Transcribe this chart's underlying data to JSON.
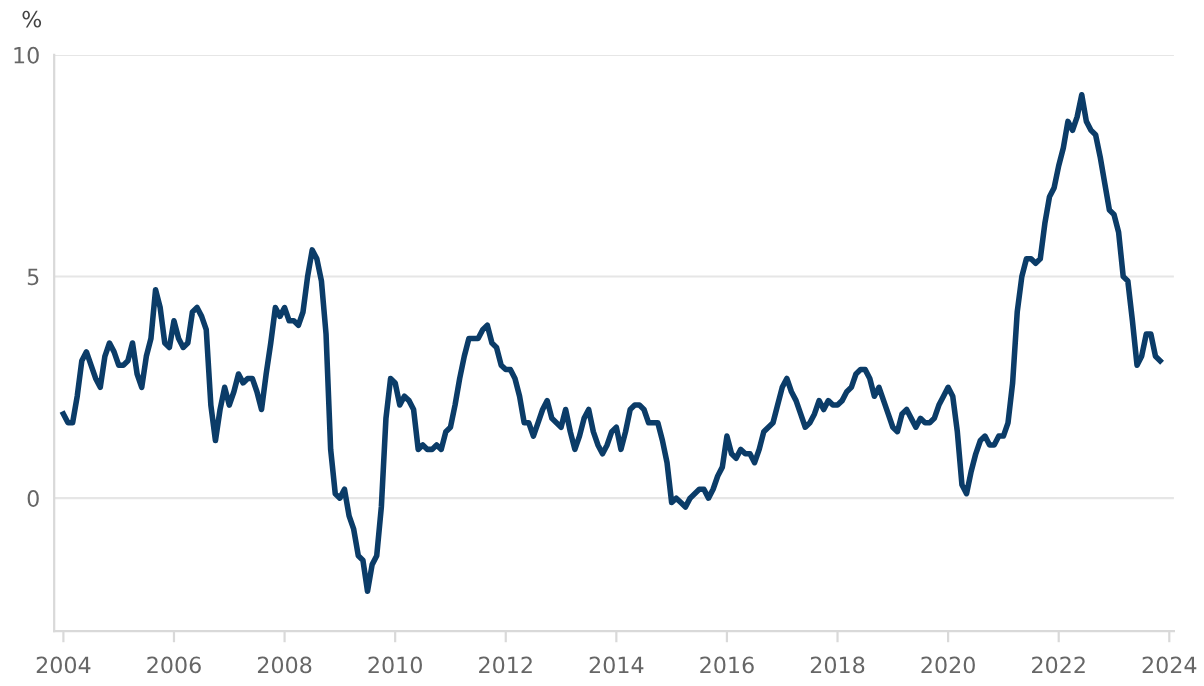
{
  "chart_data": {
    "type": "line",
    "ylabel": "%",
    "xlim": [
      "2003-11",
      "2024-02"
    ],
    "ylim": [
      -3,
      10
    ],
    "yticks": [
      0,
      5,
      10
    ],
    "xticks": [
      {
        "value": "2004",
        "label": "2004"
      },
      {
        "value": "2006",
        "label": "2006"
      },
      {
        "value": "2008",
        "label": "2008"
      },
      {
        "value": "2010",
        "label": "2010"
      },
      {
        "value": "2012",
        "label": "2012"
      },
      {
        "value": "2014",
        "label": "2014"
      },
      {
        "value": "2016",
        "label": "2016"
      },
      {
        "value": "2018",
        "label": "2018"
      },
      {
        "value": "2020",
        "label": "2020"
      },
      {
        "value": "2022",
        "label": "2022"
      },
      {
        "value": "2024",
        "label": "2024"
      }
    ],
    "grid": "y",
    "legend": false,
    "marker": "none",
    "line_style": "solid",
    "series": [
      {
        "color": "#0b3c68",
        "values": [
          1.9,
          1.7,
          1.7,
          2.3,
          3.1,
          3.3,
          3.0,
          2.7,
          2.5,
          3.2,
          3.5,
          3.3,
          3.0,
          3.0,
          3.1,
          3.5,
          2.8,
          2.5,
          3.2,
          3.6,
          4.7,
          4.3,
          3.5,
          3.4,
          4.0,
          3.6,
          3.4,
          3.5,
          4.2,
          4.3,
          4.1,
          3.8,
          2.1,
          1.3,
          2.0,
          2.5,
          2.1,
          2.4,
          2.8,
          2.6,
          2.7,
          2.7,
          2.4,
          2.0,
          2.8,
          3.5,
          4.3,
          4.1,
          4.3,
          4.0,
          4.0,
          3.9,
          4.2,
          5.0,
          5.6,
          5.4,
          4.9,
          3.7,
          1.1,
          0.1,
          0.0,
          0.2,
          -0.4,
          -0.7,
          -1.3,
          -1.4,
          -2.1,
          -1.5,
          -1.3,
          -0.2,
          1.8,
          2.7,
          2.6,
          2.1,
          2.3,
          2.2,
          2.0,
          1.1,
          1.2,
          1.1,
          1.1,
          1.2,
          1.1,
          1.5,
          1.6,
          2.1,
          2.7,
          3.2,
          3.6,
          3.6,
          3.6,
          3.8,
          3.9,
          3.5,
          3.4,
          3.0,
          2.9,
          2.9,
          2.7,
          2.3,
          1.7,
          1.7,
          1.4,
          1.7,
          2.0,
          2.2,
          1.8,
          1.7,
          1.6,
          2.0,
          1.5,
          1.1,
          1.4,
          1.8,
          2.0,
          1.5,
          1.2,
          1.0,
          1.2,
          1.5,
          1.6,
          1.1,
          1.5,
          2.0,
          2.1,
          2.1,
          2.0,
          1.7,
          1.7,
          1.7,
          1.3,
          0.8,
          -0.1,
          0.0,
          -0.1,
          -0.2,
          0.0,
          0.1,
          0.2,
          0.2,
          0.0,
          0.2,
          0.5,
          0.7,
          1.4,
          1.0,
          0.9,
          1.1,
          1.0,
          1.0,
          0.8,
          1.1,
          1.5,
          1.6,
          1.7,
          2.1,
          2.5,
          2.7,
          2.4,
          2.2,
          1.9,
          1.6,
          1.7,
          1.9,
          2.2,
          2.0,
          2.2,
          2.1,
          2.1,
          2.2,
          2.4,
          2.5,
          2.8,
          2.9,
          2.9,
          2.7,
          2.3,
          2.5,
          2.2,
          1.9,
          1.6,
          1.5,
          1.9,
          2.0,
          1.8,
          1.6,
          1.8,
          1.7,
          1.7,
          1.8,
          2.1,
          2.3,
          2.5,
          2.3,
          1.5,
          0.3,
          0.1,
          0.6,
          1.0,
          1.3,
          1.4,
          1.2,
          1.2,
          1.4,
          1.4,
          1.7,
          2.6,
          4.2,
          5.0,
          5.4,
          5.4,
          5.3,
          5.4,
          6.2,
          6.8,
          7.0,
          7.5,
          7.9,
          8.5,
          8.3,
          8.6,
          9.1,
          8.5,
          8.3,
          8.2,
          7.7,
          7.1,
          6.5,
          6.4,
          6.0,
          5.0,
          4.9,
          4.0,
          3.0,
          3.2,
          3.7,
          3.7,
          3.2,
          3.1
        ],
        "x": [
          "2004-01",
          "2004-02",
          "2004-03",
          "2004-04",
          "2004-05",
          "2004-06",
          "2004-07",
          "2004-08",
          "2004-09",
          "2004-10",
          "2004-11",
          "2004-12",
          "2005-01",
          "2005-02",
          "2005-03",
          "2005-04",
          "2005-05",
          "2005-06",
          "2005-07",
          "2005-08",
          "2005-09",
          "2005-10",
          "2005-11",
          "2005-12",
          "2006-01",
          "2006-02",
          "2006-03",
          "2006-04",
          "2006-05",
          "2006-06",
          "2006-07",
          "2006-08",
          "2006-09",
          "2006-10",
          "2006-11",
          "2006-12",
          "2007-01",
          "2007-02",
          "2007-03",
          "2007-04",
          "2007-05",
          "2007-06",
          "2007-07",
          "2007-08",
          "2007-09",
          "2007-10",
          "2007-11",
          "2007-12",
          "2008-01",
          "2008-02",
          "2008-03",
          "2008-04",
          "2008-05",
          "2008-06",
          "2008-07",
          "2008-08",
          "2008-09",
          "2008-10",
          "2008-11",
          "2008-12",
          "2009-01",
          "2009-02",
          "2009-03",
          "2009-04",
          "2009-05",
          "2009-06",
          "2009-07",
          "2009-08",
          "2009-09",
          "2009-10",
          "2009-11",
          "2009-12",
          "2010-01",
          "2010-02",
          "2010-03",
          "2010-04",
          "2010-05",
          "2010-06",
          "2010-07",
          "2010-08",
          "2010-09",
          "2010-10",
          "2010-11",
          "2010-12",
          "2011-01",
          "2011-02",
          "2011-03",
          "2011-04",
          "2011-05",
          "2011-06",
          "2011-07",
          "2011-08",
          "2011-09",
          "2011-10",
          "2011-11",
          "2011-12",
          "2012-01",
          "2012-02",
          "2012-03",
          "2012-04",
          "2012-05",
          "2012-06",
          "2012-07",
          "2012-08",
          "2012-09",
          "2012-10",
          "2012-11",
          "2012-12",
          "2013-01",
          "2013-02",
          "2013-03",
          "2013-04",
          "2013-05",
          "2013-06",
          "2013-07",
          "2013-08",
          "2013-09",
          "2013-10",
          "2013-11",
          "2013-12",
          "2014-01",
          "2014-02",
          "2014-03",
          "2014-04",
          "2014-05",
          "2014-06",
          "2014-07",
          "2014-08",
          "2014-09",
          "2014-10",
          "2014-11",
          "2014-12",
          "2015-01",
          "2015-02",
          "2015-03",
          "2015-04",
          "2015-05",
          "2015-06",
          "2015-07",
          "2015-08",
          "2015-09",
          "2015-10",
          "2015-11",
          "2015-12",
          "2016-01",
          "2016-02",
          "2016-03",
          "2016-04",
          "2016-05",
          "2016-06",
          "2016-07",
          "2016-08",
          "2016-09",
          "2016-10",
          "2016-11",
          "2016-12",
          "2017-01",
          "2017-02",
          "2017-03",
          "2017-04",
          "2017-05",
          "2017-06",
          "2017-07",
          "2017-08",
          "2017-09",
          "2017-10",
          "2017-11",
          "2017-12",
          "2018-01",
          "2018-02",
          "2018-03",
          "2018-04",
          "2018-05",
          "2018-06",
          "2018-07",
          "2018-08",
          "2018-09",
          "2018-10",
          "2018-11",
          "2018-12",
          "2019-01",
          "2019-02",
          "2019-03",
          "2019-04",
          "2019-05",
          "2019-06",
          "2019-07",
          "2019-08",
          "2019-09",
          "2019-10",
          "2019-11",
          "2019-12",
          "2020-01",
          "2020-02",
          "2020-03",
          "2020-04",
          "2020-05",
          "2020-06",
          "2020-07",
          "2020-08",
          "2020-09",
          "2020-10",
          "2020-11",
          "2020-12",
          "2021-01",
          "2021-02",
          "2021-03",
          "2021-04",
          "2021-05",
          "2021-06",
          "2021-07",
          "2021-08",
          "2021-09",
          "2021-10",
          "2021-11",
          "2021-12",
          "2022-01",
          "2022-02",
          "2022-03",
          "2022-04",
          "2022-05",
          "2022-06",
          "2022-07",
          "2022-08",
          "2022-09",
          "2022-10",
          "2022-11",
          "2022-12",
          "2023-01",
          "2023-02",
          "2023-03",
          "2023-04",
          "2023-05",
          "2023-06",
          "2023-07",
          "2023-08",
          "2023-09",
          "2023-10",
          "2023-11"
        ]
      }
    ]
  }
}
